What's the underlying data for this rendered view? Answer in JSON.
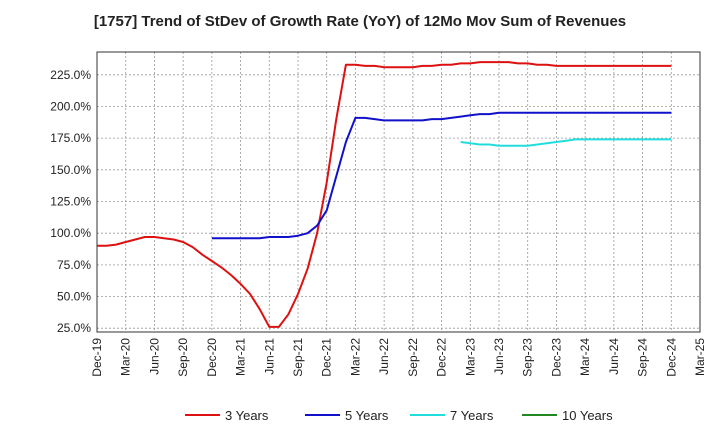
{
  "chart_data": {
    "type": "line",
    "title": "[1757]  Trend of StDev of Growth Rate (YoY) of 12Mo Mov Sum of Revenues",
    "xlabel": "",
    "ylabel": "",
    "x_ticks": [
      "Dec-19",
      "Mar-20",
      "Jun-20",
      "Sep-20",
      "Dec-20",
      "Mar-21",
      "Jun-21",
      "Sep-21",
      "Dec-21",
      "Mar-22",
      "Jun-22",
      "Sep-22",
      "Dec-22",
      "Mar-23",
      "Jun-23",
      "Sep-23",
      "Dec-23",
      "Mar-24",
      "Jun-24",
      "Sep-24",
      "Dec-24",
      "Mar-25"
    ],
    "y_ticks": [
      "25.0%",
      "50.0%",
      "75.0%",
      "100.0%",
      "125.0%",
      "150.0%",
      "175.0%",
      "200.0%",
      "225.0%"
    ],
    "y_tick_values": [
      25,
      50,
      75,
      100,
      125,
      150,
      175,
      200,
      225
    ],
    "xlim": [
      0,
      63
    ],
    "ylim": [
      22,
      243
    ],
    "grid": true,
    "legend_position": "bottom",
    "series": [
      {
        "name": "3 Years",
        "color": "#dd1111",
        "x": [
          0,
          1,
          2,
          3,
          4,
          5,
          6,
          7,
          8,
          9,
          10,
          11,
          12,
          13,
          14,
          15,
          16,
          17,
          18,
          19,
          20,
          21,
          22,
          23,
          24,
          25,
          26,
          27,
          28,
          29,
          30,
          31,
          32,
          33,
          34,
          35,
          36,
          37,
          38,
          39,
          40,
          41,
          42,
          43,
          44,
          45,
          46,
          47,
          48,
          49,
          50,
          51,
          52,
          53,
          54,
          55,
          56,
          57,
          58,
          59,
          60
        ],
        "values": [
          90,
          90,
          91,
          93,
          95,
          97,
          97,
          96,
          95,
          93,
          89,
          83,
          78,
          73,
          67,
          60,
          52,
          40,
          26,
          26,
          36,
          52,
          72,
          100,
          140,
          190,
          233,
          233,
          232,
          232,
          231,
          231,
          231,
          231,
          232,
          232,
          233,
          233,
          234,
          234,
          235,
          235,
          235,
          235,
          234,
          234,
          233,
          233,
          232,
          232,
          232,
          232,
          232,
          232,
          232,
          232,
          232,
          232,
          232,
          232,
          232
        ]
      },
      {
        "name": "5 Years",
        "color": "#1111cc",
        "x": [
          12,
          13,
          14,
          15,
          16,
          17,
          18,
          19,
          20,
          21,
          22,
          23,
          24,
          25,
          26,
          27,
          28,
          29,
          30,
          31,
          32,
          33,
          34,
          35,
          36,
          37,
          38,
          39,
          40,
          41,
          42,
          43,
          44,
          45,
          46,
          47,
          48,
          49,
          50,
          51,
          52,
          53,
          54,
          55,
          56,
          57,
          58,
          59,
          60
        ],
        "values": [
          96,
          96,
          96,
          96,
          96,
          96,
          97,
          97,
          97,
          98,
          100,
          106,
          118,
          145,
          172,
          191,
          191,
          190,
          189,
          189,
          189,
          189,
          189,
          190,
          190,
          191,
          192,
          193,
          194,
          194,
          195,
          195,
          195,
          195,
          195,
          195,
          195,
          195,
          195,
          195,
          195,
          195,
          195,
          195,
          195,
          195,
          195,
          195,
          195
        ]
      },
      {
        "name": "7 Years",
        "color": "#22dddd",
        "x": [
          38,
          39,
          40,
          41,
          42,
          43,
          44,
          45,
          46,
          47,
          48,
          49,
          50,
          51,
          52,
          53,
          54,
          55,
          56,
          57,
          58,
          59,
          60
        ],
        "values": [
          172,
          171,
          170,
          170,
          169,
          169,
          169,
          169,
          170,
          171,
          172,
          173,
          174,
          174,
          174,
          174,
          174,
          174,
          174,
          174,
          174,
          174,
          174
        ]
      },
      {
        "name": "10 Years",
        "color": "#228822",
        "x": [],
        "values": []
      }
    ]
  }
}
